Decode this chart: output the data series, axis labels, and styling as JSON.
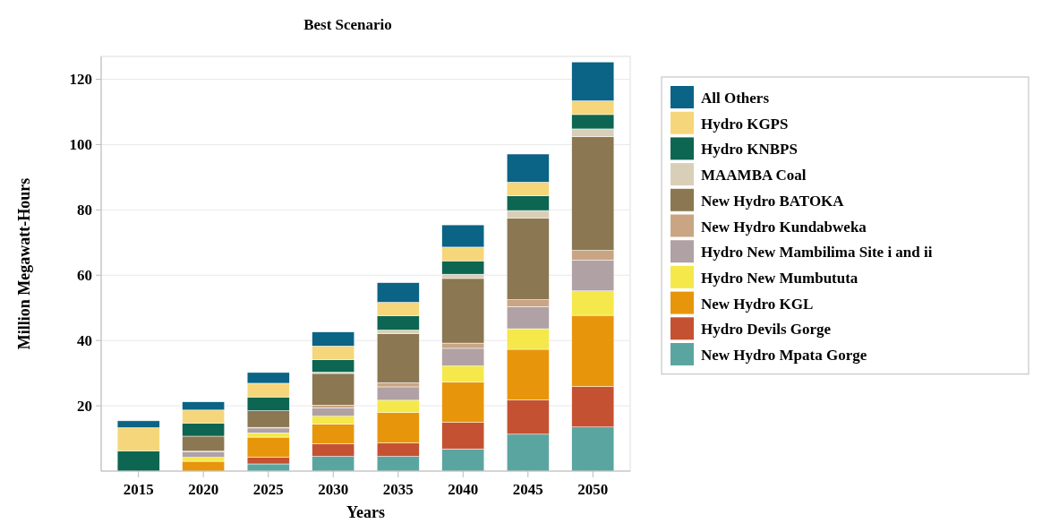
{
  "chart_data": {
    "type": "bar",
    "title": "Best Scenario",
    "xlabel": "Years",
    "ylabel": "Million Megawatt-Hours",
    "stacked": true,
    "grid": "y",
    "legend": "right",
    "categories": [
      "2015",
      "2020",
      "2025",
      "2030",
      "2035",
      "2040",
      "2045",
      "2050"
    ],
    "ylim": [
      0,
      127
    ],
    "yticks": [
      20,
      40,
      60,
      80,
      100,
      120
    ],
    "series": [
      {
        "name": "New Hydro Mpata Gorge",
        "color": "#5ba5a0",
        "values": [
          0,
          0,
          2.2,
          4.5,
          4.5,
          6.8,
          11.3,
          13.5
        ]
      },
      {
        "name": "Hydro Devils Gorge",
        "color": "#c45232",
        "values": [
          0,
          0,
          2.1,
          3.9,
          4.1,
          8.1,
          10.5,
          12.4
        ]
      },
      {
        "name": "New Hydro KGL",
        "color": "#e7960c",
        "values": [
          0,
          3.0,
          6.1,
          6.0,
          9.3,
          12.4,
          15.5,
          21.8
        ]
      },
      {
        "name": "Hydro New Mumbututa",
        "color": "#f5e84a",
        "values": [
          0,
          1.2,
          1.3,
          2.4,
          3.8,
          4.9,
          6.3,
          7.5
        ]
      },
      {
        "name": "Hydro New Mambilima Site i and ii",
        "color": "#b0a1a4",
        "values": [
          0,
          1.7,
          1.5,
          2.6,
          4.1,
          5.4,
          6.8,
          9.4
        ]
      },
      {
        "name": "New Hydro Kundabweka",
        "color": "#c9a583",
        "values": [
          0,
          0.2,
          0.2,
          0.8,
          1.3,
          1.6,
          2.1,
          3.0
        ]
      },
      {
        "name": "New Hydro BATOKA",
        "color": "#8b7752",
        "values": [
          0,
          4.6,
          5.1,
          9.7,
          15.0,
          19.8,
          25.0,
          34.8
        ]
      },
      {
        "name": "MAAMBA Coal",
        "color": "#d9cfb8",
        "values": [
          0,
          0,
          null,
          0.4,
          1.1,
          1.3,
          2.3,
          2.4
        ]
      },
      {
        "name": "Hydro KNBPS",
        "color": "#0c6651",
        "values": [
          6.1,
          4.0,
          4.2,
          3.8,
          4.4,
          4.1,
          4.5,
          4.4
        ]
      },
      {
        "name": "Hydro KGPS",
        "color": "#f6d67a",
        "values": [
          7.2,
          4.0,
          4.2,
          4.2,
          4.1,
          4.2,
          4.2,
          4.2
        ]
      },
      {
        "name": "All Others",
        "color": "#0b6385",
        "values": [
          2.1,
          2.5,
          3.3,
          4.3,
          6.0,
          6.8,
          8.6,
          11.9
        ]
      }
    ]
  }
}
